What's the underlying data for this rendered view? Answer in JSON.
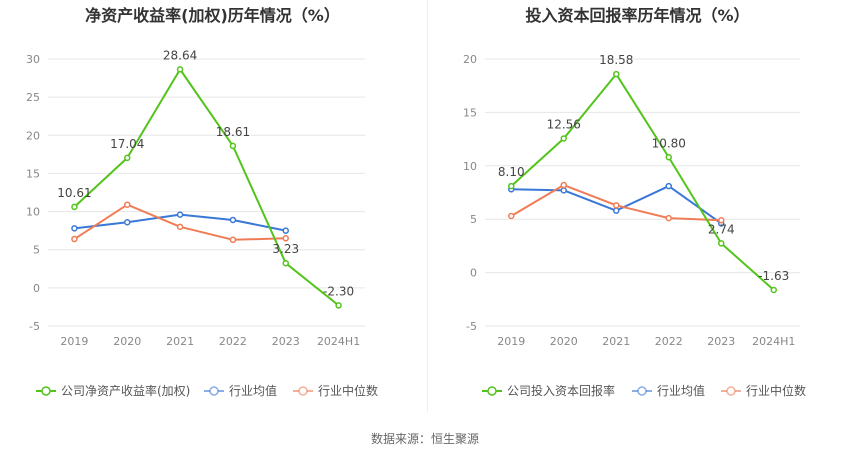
{
  "source_label": "数据来源：恒生聚源",
  "colors": {
    "company": "#52c41a",
    "avg": "#3a78d8",
    "median": "#f07c56"
  },
  "chart_data": [
    {
      "type": "line",
      "title": "净资产收益率(加权)历年情况（%）",
      "categories": [
        "2019",
        "2020",
        "2021",
        "2022",
        "2023",
        "2024H1"
      ],
      "ylim": [
        -5,
        30
      ],
      "yticks": [
        -5,
        0,
        5,
        10,
        15,
        20,
        25,
        30
      ],
      "legend_position": "bottom",
      "series": [
        {
          "name": "公司净资产收益率(加权)",
          "key": "company",
          "values": [
            10.61,
            17.04,
            28.64,
            18.61,
            3.23,
            -2.3
          ],
          "labels": [
            "10.61",
            "17.04",
            "28.64",
            "18.61",
            "3.23",
            "-2.30"
          ]
        },
        {
          "name": "行业均值",
          "key": "avg",
          "values": [
            7.8,
            8.6,
            9.6,
            8.9,
            7.5,
            null
          ]
        },
        {
          "name": "行业中位数",
          "key": "median",
          "values": [
            6.4,
            10.9,
            8.0,
            6.3,
            6.5,
            null
          ]
        }
      ]
    },
    {
      "type": "line",
      "title": "投入资本回报率历年情况（%）",
      "categories": [
        "2019",
        "2020",
        "2021",
        "2022",
        "2023",
        "2024H1"
      ],
      "ylim": [
        -5,
        20
      ],
      "yticks": [
        -5,
        0,
        5,
        10,
        15,
        20
      ],
      "legend_position": "bottom",
      "series": [
        {
          "name": "公司投入资本回报率",
          "key": "company",
          "values": [
            8.1,
            12.56,
            18.58,
            10.8,
            2.74,
            -1.63
          ],
          "labels": [
            "8.10",
            "12.56",
            "18.58",
            "10.80",
            "2.74",
            "-1.63"
          ]
        },
        {
          "name": "行业均值",
          "key": "avg",
          "values": [
            7.8,
            7.7,
            5.8,
            8.1,
            4.6,
            null
          ]
        },
        {
          "name": "行业中位数",
          "key": "median",
          "values": [
            5.3,
            8.2,
            6.3,
            5.1,
            4.9,
            null
          ]
        }
      ]
    }
  ]
}
